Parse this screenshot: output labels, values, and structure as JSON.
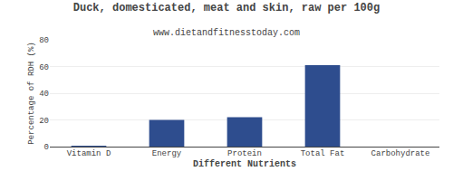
{
  "chart_data": {
    "type": "bar",
    "title": "Duck, domesticated, meat and skin, raw per 100g",
    "subtitle": "www.dietandfitnesstoday.com",
    "xlabel": "Different Nutrients",
    "ylabel": "Percentage of RDH (%)",
    "categories": [
      "Vitamin D",
      "Energy",
      "Protein",
      "Total Fat",
      "Carbohydrate"
    ],
    "values": [
      0.2,
      20.0,
      22.0,
      61.0,
      0.0
    ],
    "color": "#2e4d8e",
    "ylim": [
      0,
      80
    ],
    "yticks": [
      0,
      20,
      40,
      60,
      80
    ],
    "grid": true
  }
}
